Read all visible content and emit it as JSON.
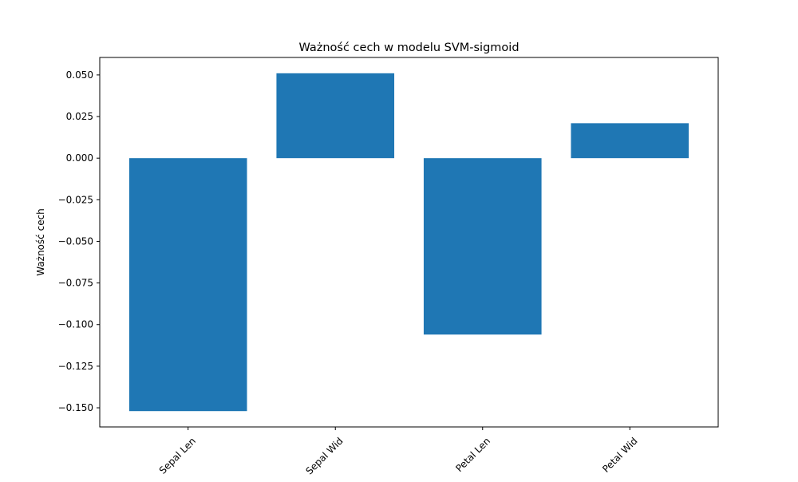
{
  "chart_data": {
    "type": "bar",
    "title": "Ważność cech w modelu SVM-sigmoid",
    "xlabel": "",
    "ylabel": "Ważność cech",
    "categories": [
      "Sepal Len",
      "Sepal Wid",
      "Petal Len",
      "Petal Wid"
    ],
    "values": [
      -0.152,
      0.051,
      -0.106,
      0.021
    ],
    "ylim": [
      -0.1615,
      0.0605
    ],
    "yticks": [
      0.05,
      0.025,
      0.0,
      -0.025,
      -0.05,
      -0.075,
      -0.1,
      -0.125,
      -0.15
    ],
    "ytick_labels": [
      "0.050",
      "0.025",
      "0.000",
      "−0.025",
      "−0.050",
      "−0.075",
      "−0.100",
      "−0.125",
      "−0.150"
    ],
    "x_tick_rotation_deg": 45,
    "grid": false,
    "bar_color": "#1f77b4"
  }
}
